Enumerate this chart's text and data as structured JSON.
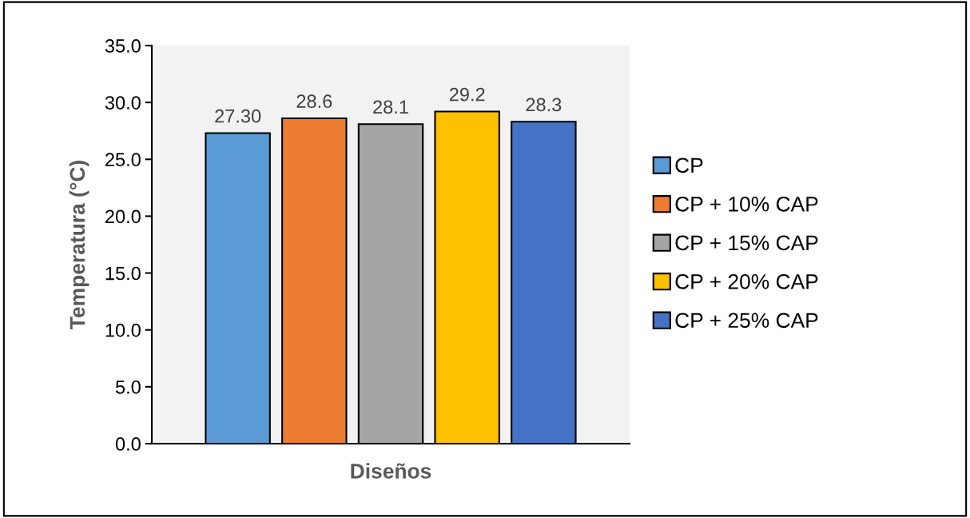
{
  "chart_data": {
    "type": "bar",
    "xlabel": "Diseños",
    "ylabel": "Temperatura (°C)",
    "categories": [
      null
    ],
    "series": [
      {
        "name": "CP",
        "color": "#5b9bd5",
        "values": [
          27.3
        ],
        "value_labels": [
          "27.30"
        ]
      },
      {
        "name": "CP + 10% CAP",
        "color": "#ed7d31",
        "values": [
          28.6
        ],
        "value_labels": [
          "28.6"
        ]
      },
      {
        "name": "CP + 15% CAP",
        "color": "#a5a5a5",
        "values": [
          28.1
        ],
        "value_labels": [
          "28.1"
        ]
      },
      {
        "name": "CP + 20% CAP",
        "color": "#ffc000",
        "values": [
          29.2
        ],
        "value_labels": [
          "29.2"
        ]
      },
      {
        "name": "CP + 25% CAP",
        "color": "#4472c4",
        "values": [
          28.3
        ],
        "value_labels": [
          "28.3"
        ]
      }
    ],
    "ylim": [
      0,
      35
    ],
    "yticks": [
      {
        "value": 0,
        "label": "0.0"
      },
      {
        "value": 5,
        "label": "5.0"
      },
      {
        "value": 10,
        "label": "10.0"
      },
      {
        "value": 15,
        "label": "15.0"
      },
      {
        "value": 20,
        "label": "20.0"
      },
      {
        "value": 25,
        "label": "25.0"
      },
      {
        "value": 30,
        "label": "30.0"
      },
      {
        "value": 35,
        "label": "35.0"
      }
    ],
    "grid": false,
    "legend": "right"
  }
}
